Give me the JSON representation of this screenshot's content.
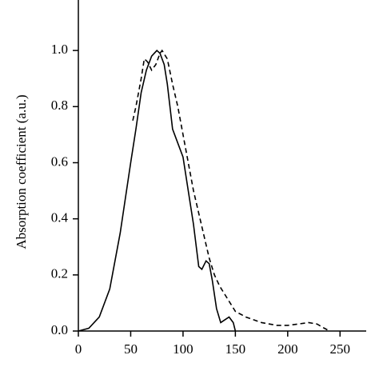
{
  "chart_data": {
    "type": "line",
    "y_label": "Absorption coefficient (a.u.)",
    "xlim": [
      0,
      275
    ],
    "ylim": [
      0,
      1.18
    ],
    "xticks": [
      0,
      50,
      100,
      150,
      200,
      250
    ],
    "yticks": [
      {
        "value": 0,
        "label": "0.0"
      },
      0.2,
      0.4,
      0.6,
      0.8,
      {
        "value": 1,
        "label": "1.0"
      }
    ],
    "series": [
      {
        "color": "#000000",
        "dash": "solid",
        "x": [
          0,
          10,
          20,
          30,
          40,
          50,
          55,
          60,
          65,
          70,
          75,
          78,
          82,
          85,
          90,
          95,
          100,
          105,
          110,
          115,
          118,
          122,
          125,
          128,
          132,
          136,
          140,
          144,
          148,
          150
        ],
        "values": [
          0,
          0.01,
          0.05,
          0.15,
          0.35,
          0.6,
          0.72,
          0.85,
          0.93,
          0.98,
          1.0,
          0.99,
          0.95,
          0.88,
          0.72,
          0.67,
          0.62,
          0.5,
          0.38,
          0.23,
          0.22,
          0.25,
          0.24,
          0.18,
          0.08,
          0.03,
          0.04,
          0.05,
          0.03,
          0
        ]
      },
      {
        "color": "#000000",
        "dash": "dashed",
        "x": [
          52,
          55,
          60,
          63,
          66,
          70,
          74,
          78,
          80,
          85,
          90,
          95,
          100,
          105,
          110,
          115,
          120,
          125,
          130,
          135,
          140,
          145,
          150,
          160,
          175,
          190,
          200,
          210,
          220,
          228,
          235,
          240
        ],
        "values": [
          0.75,
          0.8,
          0.9,
          0.97,
          0.96,
          0.93,
          0.95,
          0.99,
          1.0,
          0.97,
          0.88,
          0.8,
          0.7,
          0.6,
          0.5,
          0.42,
          0.34,
          0.26,
          0.2,
          0.16,
          0.13,
          0.1,
          0.07,
          0.05,
          0.03,
          0.02,
          0.02,
          0.025,
          0.03,
          0.025,
          0.01,
          0
        ]
      }
    ]
  }
}
